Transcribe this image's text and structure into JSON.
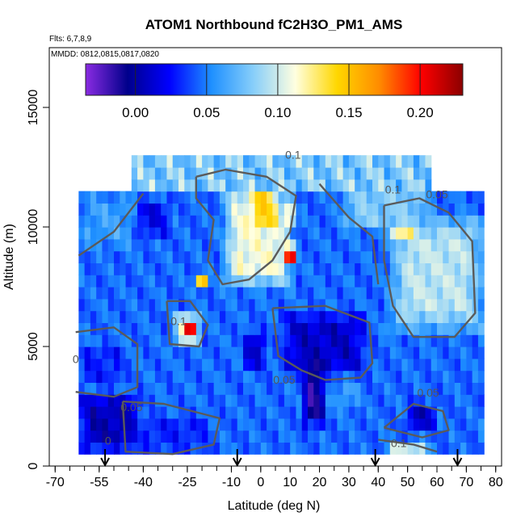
{
  "chart_data": {
    "type": "heatmap",
    "title": "ATOM1 Northbound fC2H3O_PM1_AMS",
    "flights_label": "Flts: 6,7,8,9",
    "dates_label": "MMDD: 0812,0815,0817,0820",
    "xlabel": "Latitude (deg N)",
    "ylabel": "Altitude (m)",
    "xlim": [
      -72,
      82
    ],
    "ylim": [
      0,
      17500
    ],
    "x_ticks": [
      -70,
      -55,
      -40,
      -25,
      -10,
      0,
      10,
      20,
      30,
      40,
      50,
      60,
      70,
      80
    ],
    "x_tick_labels": [
      "-70",
      "-55",
      "-40",
      "-25",
      "-10",
      "0",
      "10",
      "20",
      "30",
      "40",
      "50",
      "60",
      "70",
      "80"
    ],
    "y_ticks": [
      0,
      5000,
      10000,
      15000
    ],
    "y_tick_labels": [
      "0",
      "5000",
      "10000",
      "15000"
    ],
    "colorbar": {
      "range": [
        -0.035,
        0.23
      ],
      "ticks": [
        0.0,
        0.05,
        0.1,
        0.15,
        0.2
      ],
      "tick_labels": [
        "0.00",
        "0.05",
        "0.10",
        "0.15",
        "0.20"
      ],
      "colors": [
        "#8a2be2",
        "#00008b",
        "#0000ff",
        "#1e90ff",
        "#87cefa",
        "#ffffe0",
        "#ffd700",
        "#ff8c00",
        "#ff0000",
        "#8b0000"
      ]
    },
    "contour_levels": [
      0.05,
      0.1
    ],
    "contour_labels": [
      {
        "text": "0.1",
        "x": 11,
        "y": 12850
      },
      {
        "text": "0.1",
        "x": 45,
        "y": 11400
      },
      {
        "text": "0.05",
        "x": 60,
        "y": 11200
      },
      {
        "text": "0.1",
        "x": -28,
        "y": 5900
      },
      {
        "text": "0.05",
        "x": 8,
        "y": 3450
      },
      {
        "text": "0.05",
        "x": -44,
        "y": 2300
      },
      {
        "text": "0.05",
        "x": 57,
        "y": 2900
      },
      {
        "text": "0.1",
        "x": 47,
        "y": 800
      },
      {
        "text": "0",
        "x": -52,
        "y": 900
      },
      {
        "text": "0",
        "x": -63,
        "y": 4300
      }
    ],
    "flight_arrows_lat": [
      -53,
      -8,
      39,
      67
    ],
    "regions": [
      {
        "lat": [
          -63,
          76
        ],
        "alt": [
          500,
          11500
        ],
        "value": 0.045
      },
      {
        "lat": [
          -63,
          -40
        ],
        "alt": [
          500,
          3200
        ],
        "value": 0.005
      },
      {
        "lat": [
          -63,
          -45
        ],
        "alt": [
          3200,
          5200
        ],
        "value": 0.03
      },
      {
        "lat": [
          -45,
          -15
        ],
        "alt": [
          500,
          2300
        ],
        "value": 0.03
      },
      {
        "lat": [
          -48,
          -30
        ],
        "alt": [
          9500,
          11300
        ],
        "value": 0.02
      },
      {
        "lat": [
          -12,
          3
        ],
        "alt": [
          10800,
          12500
        ],
        "value": 0.09
      },
      {
        "lat": [
          -14,
          12
        ],
        "alt": [
          7200,
          11700
        ],
        "value": 0.11
      },
      {
        "lat": [
          -4,
          6
        ],
        "alt": [
          9800,
          11800
        ],
        "value": 0.14
      },
      {
        "lat": [
          8,
          12
        ],
        "alt": [
          10200,
          10800
        ],
        "value": 0.17
      },
      {
        "lat": [
          8,
          12
        ],
        "alt": [
          8400,
          9300
        ],
        "value": 0.2
      },
      {
        "lat": [
          -30,
          -20
        ],
        "alt": [
          5000,
          6500
        ],
        "value": 0.11
      },
      {
        "lat": [
          -26,
          -21
        ],
        "alt": [
          5500,
          6200
        ],
        "value": 0.21
      },
      {
        "lat": [
          -22,
          -18
        ],
        "alt": [
          7400,
          8200
        ],
        "value": 0.15
      },
      {
        "lat": [
          5,
          38
        ],
        "alt": [
          3700,
          6600
        ],
        "value": 0.01
      },
      {
        "lat": [
          14,
          22
        ],
        "alt": [
          1500,
          4800
        ],
        "value": -0.01
      },
      {
        "lat": [
          -6,
          2
        ],
        "alt": [
          4000,
          5800
        ],
        "value": 0.01
      },
      {
        "lat": [
          42,
          78
        ],
        "alt": [
          5300,
          10800
        ],
        "value": 0.095
      },
      {
        "lat": [
          44,
          52
        ],
        "alt": [
          9500,
          11300
        ],
        "value": 0.16
      },
      {
        "lat": [
          49,
          60
        ],
        "alt": [
          1500,
          2800
        ],
        "value": 0.01
      },
      {
        "lat": [
          42,
          58
        ],
        "alt": [
          300,
          1100
        ],
        "value": 0.1
      },
      {
        "lat": [
          25,
          60
        ],
        "alt": [
          9700,
          12200
        ],
        "value": 0.08
      },
      {
        "lat": [
          -63,
          -40
        ],
        "alt": [
          9000,
          11500
        ],
        "value": 0.06
      },
      {
        "lat": [
          24,
          34
        ],
        "alt": [
          2200,
          3700
        ],
        "value": 0.06
      }
    ]
  }
}
